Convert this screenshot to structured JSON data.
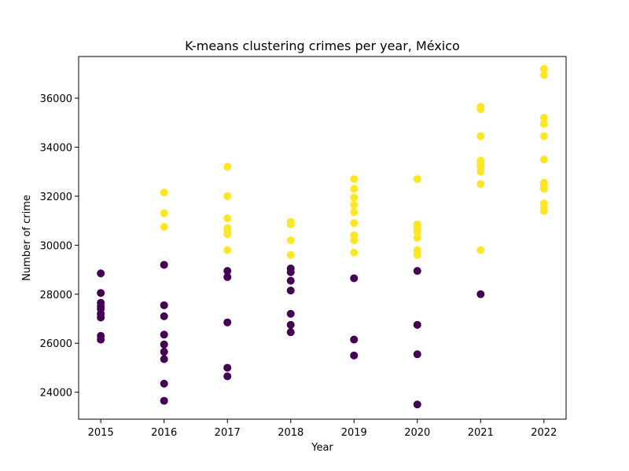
{
  "chart_data": {
    "type": "scatter",
    "title": "K-means clustering crimes per year, México",
    "xlabel": "Year",
    "ylabel": "Number of crime",
    "xlim": [
      2014.65,
      2022.35
    ],
    "ylim": [
      22900,
      37700
    ],
    "xticks": [
      2015,
      2016,
      2017,
      2018,
      2019,
      2020,
      2021,
      2022
    ],
    "yticks": [
      24000,
      26000,
      28000,
      30000,
      32000,
      34000,
      36000
    ],
    "grid": false,
    "legend": "none",
    "clusters": [
      {
        "color": "#440154",
        "points": [
          [
            2015,
            28850
          ],
          [
            2015,
            28050
          ],
          [
            2015,
            27650
          ],
          [
            2015,
            27500
          ],
          [
            2015,
            27400
          ],
          [
            2015,
            27200
          ],
          [
            2015,
            27050
          ],
          [
            2015,
            26300
          ],
          [
            2015,
            26150
          ],
          [
            2016,
            29200
          ],
          [
            2016,
            27550
          ],
          [
            2016,
            27100
          ],
          [
            2016,
            26350
          ],
          [
            2016,
            25950
          ],
          [
            2016,
            25650
          ],
          [
            2016,
            25350
          ],
          [
            2016,
            24350
          ],
          [
            2016,
            23650
          ],
          [
            2017,
            28950
          ],
          [
            2017,
            28700
          ],
          [
            2017,
            26850
          ],
          [
            2017,
            25000
          ],
          [
            2017,
            24650
          ],
          [
            2018,
            29050
          ],
          [
            2018,
            28900
          ],
          [
            2018,
            28550
          ],
          [
            2018,
            28150
          ],
          [
            2018,
            27200
          ],
          [
            2018,
            26750
          ],
          [
            2018,
            26450
          ],
          [
            2019,
            28650
          ],
          [
            2019,
            26150
          ],
          [
            2019,
            25500
          ],
          [
            2020,
            28950
          ],
          [
            2020,
            26750
          ],
          [
            2020,
            25550
          ],
          [
            2020,
            23500
          ],
          [
            2021,
            28000
          ]
        ]
      },
      {
        "color": "#fde725",
        "points": [
          [
            2016,
            32150
          ],
          [
            2016,
            31300
          ],
          [
            2016,
            30750
          ],
          [
            2017,
            33200
          ],
          [
            2017,
            32000
          ],
          [
            2017,
            31100
          ],
          [
            2017,
            30700
          ],
          [
            2017,
            30550
          ],
          [
            2017,
            30450
          ],
          [
            2017,
            29800
          ],
          [
            2018,
            30950
          ],
          [
            2018,
            30850
          ],
          [
            2018,
            30200
          ],
          [
            2018,
            29600
          ],
          [
            2019,
            32700
          ],
          [
            2019,
            32300
          ],
          [
            2019,
            31950
          ],
          [
            2019,
            31650
          ],
          [
            2019,
            31350
          ],
          [
            2019,
            30900
          ],
          [
            2019,
            30400
          ],
          [
            2019,
            30200
          ],
          [
            2019,
            29700
          ],
          [
            2020,
            32700
          ],
          [
            2020,
            30850
          ],
          [
            2020,
            30700
          ],
          [
            2020,
            30550
          ],
          [
            2020,
            30300
          ],
          [
            2020,
            29800
          ],
          [
            2020,
            29600
          ],
          [
            2021,
            35650
          ],
          [
            2021,
            35550
          ],
          [
            2021,
            34450
          ],
          [
            2021,
            33450
          ],
          [
            2021,
            33300
          ],
          [
            2021,
            33200
          ],
          [
            2021,
            33000
          ],
          [
            2021,
            32500
          ],
          [
            2021,
            29800
          ],
          [
            2022,
            37200
          ],
          [
            2022,
            36950
          ],
          [
            2022,
            35200
          ],
          [
            2022,
            34950
          ],
          [
            2022,
            34450
          ],
          [
            2022,
            33500
          ],
          [
            2022,
            32550
          ],
          [
            2022,
            32400
          ],
          [
            2022,
            32300
          ],
          [
            2022,
            31700
          ],
          [
            2022,
            31550
          ],
          [
            2022,
            31400
          ]
        ]
      }
    ]
  }
}
